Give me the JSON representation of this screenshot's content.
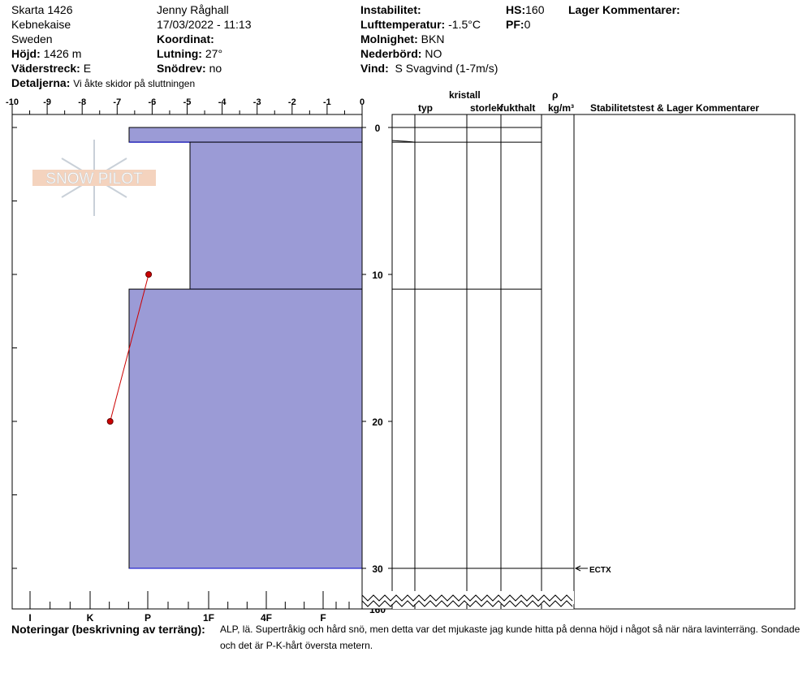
{
  "header": {
    "col1": [
      "Skarta 1426",
      "Kebnekaise",
      "Sweden"
    ],
    "hojd_label": "Höjd:",
    "hojd": "1426 m",
    "vaderstreck_label": "Väderstreck:",
    "vaderstreck": "E",
    "detaljerna_label": "Detaljerna:",
    "detaljerna": "Vi åkte skidor på sluttningen",
    "observer": "Jenny Råghall",
    "datetime": "17/03/2022 - 11:13",
    "koordinat_label": "Koordinat:",
    "koordinat": "",
    "lutning_label": "Lutning:",
    "lutning": "27°",
    "snodrev_label": "Snödrev:",
    "snodrev": "no",
    "instabilitet_label": "Instabilitet:",
    "instabilitet": "",
    "lufttemp_label": "Lufttemperatur:",
    "lufttemp": "-1.5°C",
    "molnighet_label": "Molnighet:",
    "molnighet": "BKN",
    "nederbord_label": "Nederbörd:",
    "nederbord": "NO",
    "vind_label": "Vind:",
    "vind": "S Svagvind (1-7m/s)",
    "hs_label": "HS:",
    "hs": "160",
    "pf_label": "PF:",
    "pf": "0",
    "lager_label": "Lager Kommentarer:"
  },
  "table_headers": {
    "kristall": "kristall",
    "typ": "typ",
    "storlek": "storlek",
    "fukthalt": "fukthalt",
    "rho": "ρ",
    "density_unit": "kg/m³",
    "stab": "Stabilitetstest & Lager Kommentarer"
  },
  "logo_text": "SNOW PILOT",
  "notes": {
    "label": "Noteringar (beskrivning av terräng):",
    "line1": "ALP, lä. Supertråkig och hård snö, men detta var det mjukaste jag kunde hitta på denna höjd i något så när nära lavinterräng. Sondade",
    "line2": "och det är P-K-hårt översta metern."
  },
  "stability_test": "ECTX",
  "chart_data": {
    "type": "snow-profile",
    "temp_axis": {
      "ticks": [
        "-10",
        "-9",
        "-8",
        "-7",
        "-6",
        "-5",
        "-4",
        "-3",
        "-2",
        "-1",
        "0"
      ],
      "range": [
        -10,
        0
      ]
    },
    "hardness_axis": {
      "ticks": [
        "I",
        "K",
        "P",
        "1F",
        "4F",
        "F"
      ]
    },
    "depth_axis": {
      "ticks": [
        "0",
        "10",
        "20",
        "30",
        "160"
      ]
    },
    "layers": [
      {
        "top": 0,
        "bottom": 1,
        "hardness": "P+"
      },
      {
        "top": 1,
        "bottom": 11,
        "hardness": "1F+"
      },
      {
        "top": 11,
        "bottom": 30,
        "hardness": "P+"
      }
    ],
    "temperature": [
      {
        "depth": 10,
        "temp": -6.1
      },
      {
        "depth": 20,
        "temp": -7.2
      }
    ],
    "fill_color": "#9b9bd6",
    "line_color": "#0000cc",
    "temp_color": "#cc0000"
  }
}
